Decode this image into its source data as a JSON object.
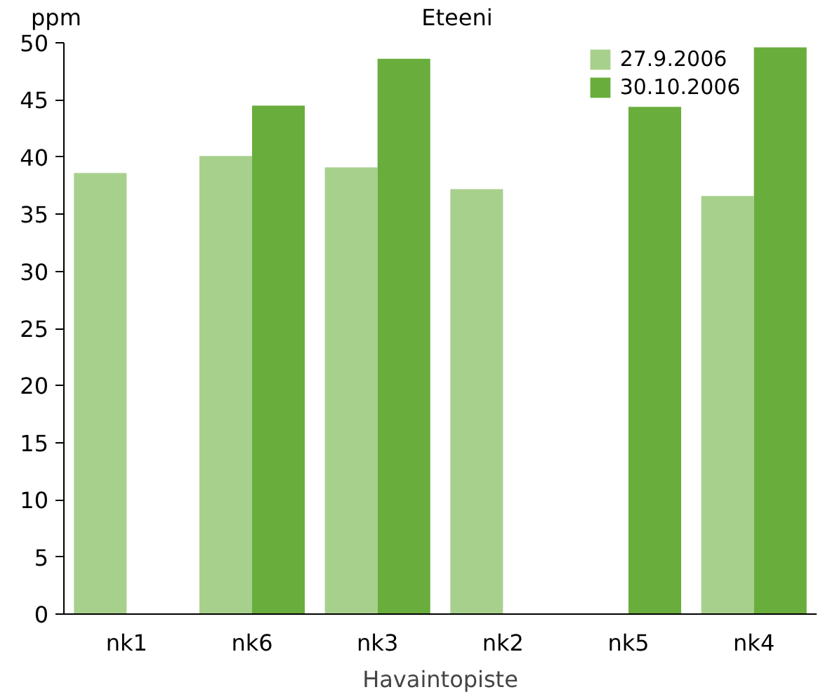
{
  "chart_data": {
    "type": "bar",
    "title": "Eteeni",
    "ylabel": "ppm",
    "xlabel": "Havaintopiste",
    "categories": [
      "nk1",
      "nk6",
      "nk3",
      "nk2",
      "nk5",
      "nk4"
    ],
    "series": [
      {
        "name": "27.9.2006",
        "color": "#a8d08d",
        "values": [
          38.6,
          40.1,
          39.1,
          37.2,
          null,
          36.6
        ]
      },
      {
        "name": "30.10.2006",
        "color": "#69ad3c",
        "values": [
          null,
          44.5,
          48.6,
          null,
          44.4,
          49.6
        ]
      }
    ],
    "ylim": [
      0,
      50
    ],
    "yticks": [
      0,
      5,
      10,
      15,
      20,
      25,
      30,
      35,
      40,
      45,
      50
    ],
    "grid": false,
    "legend": "top right"
  }
}
